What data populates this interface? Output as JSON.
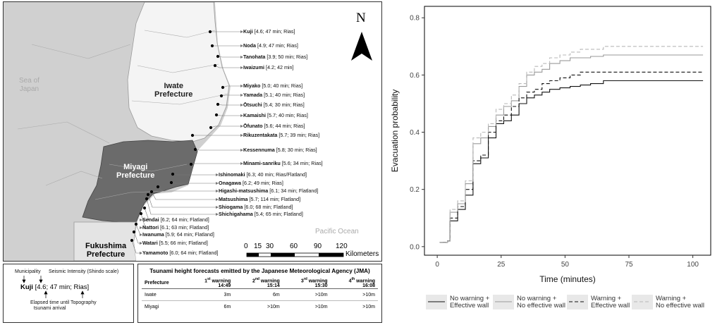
{
  "map": {
    "north_symbol": "N",
    "sea_of_japan": [
      "Sea of",
      "Japan"
    ],
    "pacific_ocean": "Pacific Ocean",
    "iwate_label": [
      "Iwate",
      "Prefecture"
    ],
    "miyagi_label": [
      "Miyagi",
      "Prefecture"
    ],
    "fukushima_label": [
      "Fukushima",
      "Prefecture"
    ],
    "scale_ticks": [
      "0",
      "15",
      "30",
      "60",
      "90",
      "120"
    ],
    "scale_unit": "Kilometers",
    "municipalities": [
      {
        "name": "Kuji",
        "info": "[4.6;  47 min; Rias]"
      },
      {
        "name": "Noda",
        "info": "[4.9; 47 min; Rias]"
      },
      {
        "name": "Tanohata",
        "info": "[3.9; 50 min; Rias]"
      },
      {
        "name": "Iwaizumi",
        "info": "[4.2; 42 min]"
      },
      {
        "name": "Miyako",
        "info": "[5.0; 40 min; Rias]"
      },
      {
        "name": "Yamada",
        "info": "[5.1; 40 min; Rias]"
      },
      {
        "name": "Ōtsuchi",
        "info": "[5.4; 30 min; Rias]"
      },
      {
        "name": "Kamaishi",
        "info": "[5.7; 40 min; Rias]"
      },
      {
        "name": "Ōfunato",
        "info": "[5.6; 44 min; Rias]"
      },
      {
        "name": "Rikuzentakata",
        "info": "[5.7; 39 min; Rias]"
      },
      {
        "name": "Kessennuma",
        "info": "[5.8; 30 min; Rias]"
      },
      {
        "name": "Minami-sanriku",
        "info": "[5.6; 34 min; Rias]"
      },
      {
        "name": "Ishinomaki",
        "info": "[6.3; 40 min; Rias/Flatland]"
      },
      {
        "name": "Onagawa",
        "info": "[6.2; 49 min; Rias]"
      },
      {
        "name": "Higashi-matsushima",
        "info": "[6.1; 34 min; Flatland]"
      },
      {
        "name": "Matsushima",
        "info": "[5.7; 114 min; Flatland]"
      },
      {
        "name": "Shiogama",
        "info": "[6.0; 68 min; Flatland]"
      },
      {
        "name": "Shichigahama",
        "info": "[5.4; 65 min; Flatland]"
      },
      {
        "name": "Sendai",
        "info": "[6.2; 64 min; Flatland]"
      },
      {
        "name": "Nattori",
        "info": "[6.1; 63 min; Flatland]"
      },
      {
        "name": "Iwanuma",
        "info": "[5.9; 64 min; Flatland]"
      },
      {
        "name": "Watari",
        "info": "[5.5; 66 min; Flatland]"
      },
      {
        "name": "Yamamoto",
        "info": "[6.0; 64 min; Flatland]"
      }
    ]
  },
  "legend_box": {
    "municipality": "Municipality",
    "seismic": "Seismic Intensity (Shindo scale)",
    "example_name": "Kuji",
    "example_rest": "[4.6;  47 min; Rias]",
    "elapsed": [
      "Elapsed time until",
      "tsunami arrival"
    ],
    "topography": "Topography"
  },
  "jma_table": {
    "title": "Tsunami height forecasts emitted by the Japanese Meteorological Agency (JMA)",
    "header": [
      {
        "main": "Prefecture",
        "time": ""
      },
      {
        "main": "1st warning",
        "time": "14:49"
      },
      {
        "main": "2nd warning",
        "time": "15:14"
      },
      {
        "main": "3rd warning",
        "time": "15:30"
      },
      {
        "main": "4th warning",
        "time": "16:08"
      }
    ],
    "rows": [
      [
        "Iwate",
        "3m",
        "6m",
        ">10m",
        ">10m"
      ],
      [
        "Miyagi",
        "6m",
        ">10m",
        ">10m",
        ">10m"
      ]
    ]
  },
  "chart_data": {
    "type": "line",
    "step": true,
    "xlabel": "Time (minutes)",
    "ylabel": "Evacuation probability",
    "xlim": [
      -5,
      107
    ],
    "ylim": [
      -0.03,
      0.84
    ],
    "xticks": [
      0,
      25,
      50,
      75,
      100
    ],
    "yticks": [
      0.0,
      0.2,
      0.4,
      0.6,
      0.8
    ],
    "legend_position": "bottom",
    "grid": false,
    "series": [
      {
        "name": "No warning + Effective wall",
        "color": "#111111",
        "dash": "",
        "x": [
          1,
          4,
          5,
          8,
          11,
          14,
          17,
          20,
          23,
          26,
          29,
          32,
          35,
          38,
          41,
          44,
          48,
          52,
          56,
          60,
          65,
          104
        ],
        "y": [
          0.015,
          0.02,
          0.09,
          0.13,
          0.18,
          0.29,
          0.31,
          0.38,
          0.43,
          0.44,
          0.46,
          0.5,
          0.52,
          0.53,
          0.54,
          0.55,
          0.555,
          0.56,
          0.565,
          0.57,
          0.58,
          0.58
        ]
      },
      {
        "name": "No warning + No effective wall",
        "color": "#9a9a9a",
        "dash": "",
        "x": [
          1,
          4,
          5,
          8,
          11,
          14,
          17,
          20,
          23,
          26,
          29,
          32,
          35,
          38,
          41,
          44,
          48,
          52,
          56,
          60,
          65,
          104
        ],
        "y": [
          0.015,
          0.02,
          0.12,
          0.15,
          0.22,
          0.36,
          0.38,
          0.42,
          0.46,
          0.49,
          0.51,
          0.56,
          0.6,
          0.61,
          0.62,
          0.64,
          0.65,
          0.66,
          0.66,
          0.665,
          0.67,
          0.67
        ]
      },
      {
        "name": "Warning + Effective wall",
        "color": "#111111",
        "dash": "5,3",
        "x": [
          1,
          4,
          5,
          8,
          11,
          14,
          17,
          20,
          23,
          26,
          29,
          32,
          35,
          38,
          41,
          44,
          48,
          52,
          56,
          60,
          65,
          104
        ],
        "y": [
          0.015,
          0.02,
          0.1,
          0.14,
          0.2,
          0.3,
          0.32,
          0.4,
          0.44,
          0.46,
          0.49,
          0.52,
          0.54,
          0.55,
          0.57,
          0.58,
          0.59,
          0.6,
          0.61,
          0.61,
          0.61,
          0.61
        ]
      },
      {
        "name": "Warning + No effective wall",
        "color": "#b8b8b8",
        "dash": "5,3",
        "x": [
          1,
          4,
          5,
          8,
          11,
          14,
          17,
          20,
          23,
          26,
          29,
          32,
          35,
          38,
          41,
          44,
          48,
          52,
          56,
          60,
          65,
          104
        ],
        "y": [
          0.015,
          0.02,
          0.13,
          0.16,
          0.23,
          0.38,
          0.4,
          0.43,
          0.48,
          0.5,
          0.53,
          0.57,
          0.61,
          0.63,
          0.64,
          0.66,
          0.67,
          0.68,
          0.69,
          0.69,
          0.7,
          0.7
        ]
      }
    ]
  },
  "chart_legend": [
    {
      "line1": "No warning +",
      "line2": "Effective wall"
    },
    {
      "line1": "No warning +",
      "line2": "No effective wall"
    },
    {
      "line1": "Warning +",
      "line2": "Effective wall"
    },
    {
      "line1": "Warning +",
      "line2": "No effective wall"
    }
  ]
}
